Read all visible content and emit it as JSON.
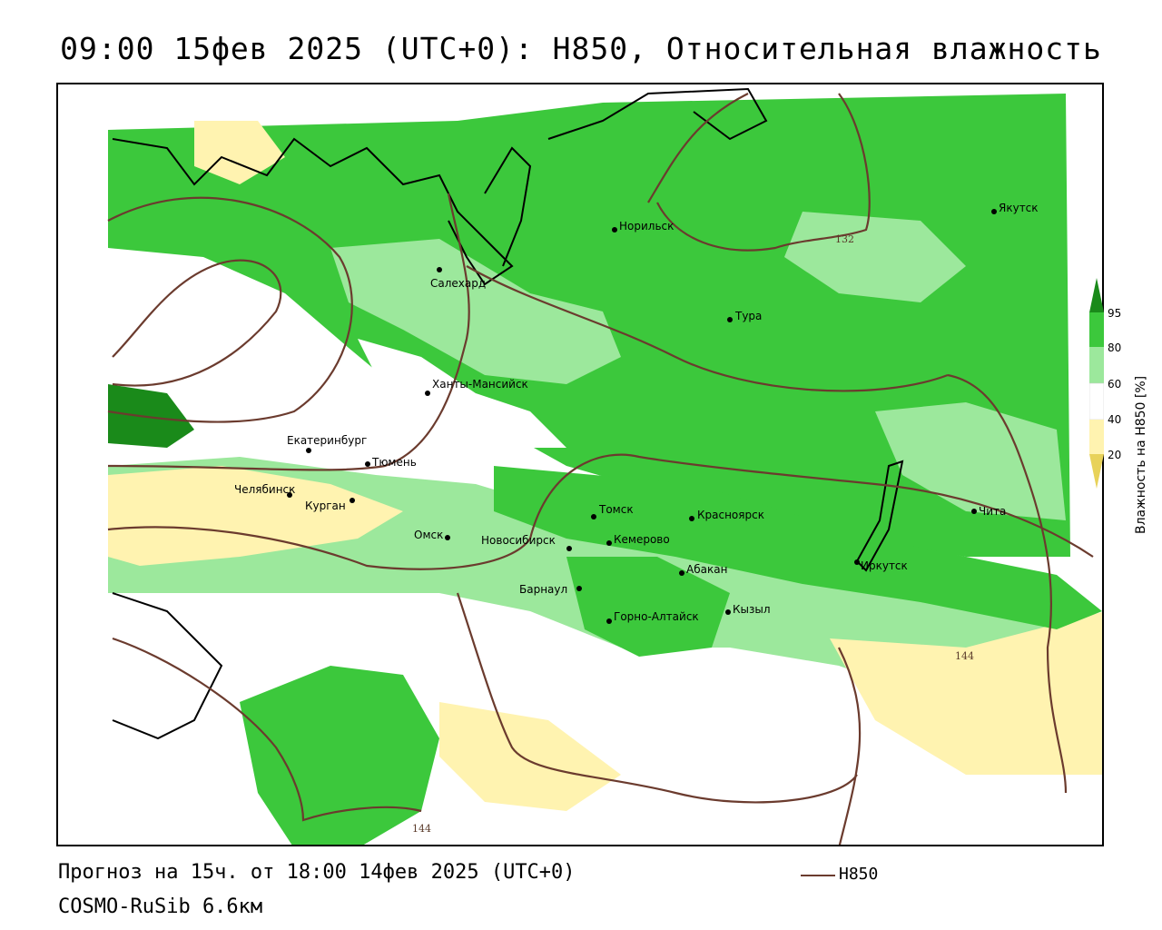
{
  "title": "09:00 15фев 2025 (UTC+0): H850, Относительная влажность",
  "footer": {
    "forecast": "Прогноз на 15ч. от 18:00 14фев 2025 (UTC+0)",
    "model": "COSMO-RuSib 6.6км",
    "line_legend": "H850"
  },
  "colorbar": {
    "title": "Влажность на H850 [%]",
    "ticks": [
      "95",
      "80",
      "60",
      "40",
      "20"
    ],
    "colors": [
      "#1a8a1a",
      "#3cc83c",
      "#9ce89c",
      "#ffffff",
      "#fff3b0",
      "#e8d25a"
    ]
  },
  "contour_labels": [
    "132",
    "144",
    "144"
  ],
  "cities": [
    {
      "name": "Якутск"
    },
    {
      "name": "Норильск"
    },
    {
      "name": "Салехард"
    },
    {
      "name": "Тура"
    },
    {
      "name": "Ханты-Мансийск"
    },
    {
      "name": "Екатеринбург"
    },
    {
      "name": "Тюмень"
    },
    {
      "name": "Челябинск"
    },
    {
      "name": "Курган"
    },
    {
      "name": "Омск"
    },
    {
      "name": "Новосибирск"
    },
    {
      "name": "Томск"
    },
    {
      "name": "Кемерово"
    },
    {
      "name": "Красноярск"
    },
    {
      "name": "Абакан"
    },
    {
      "name": "Барнаул"
    },
    {
      "name": "Горно-Алтайск"
    },
    {
      "name": "Кызыл"
    },
    {
      "name": "Иркутск"
    },
    {
      "name": "Чита"
    }
  ]
}
